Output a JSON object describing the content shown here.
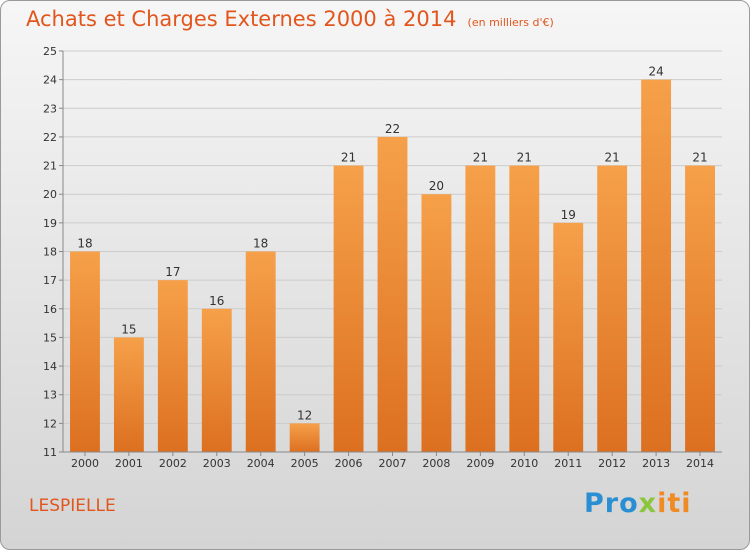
{
  "title": "Achats et Charges Externes 2000 à 2014",
  "subtitle": "(en milliers d'€)",
  "commune": "LESPIELLE",
  "logo": {
    "part1": "Pro",
    "part2": "x",
    "part3": "iti"
  },
  "colors": {
    "bar_top": "#f6a04a",
    "bar_bottom": "#dc7020",
    "title": "#e2561d",
    "grid": "#cccccc"
  },
  "chart_data": {
    "type": "bar",
    "categories": [
      "2000",
      "2001",
      "2002",
      "2003",
      "2004",
      "2005",
      "2006",
      "2007",
      "2008",
      "2009",
      "2010",
      "2011",
      "2012",
      "2013",
      "2014"
    ],
    "values": [
      18,
      15,
      17,
      16,
      18,
      12,
      21,
      22,
      20,
      21,
      21,
      19,
      21,
      24,
      21
    ],
    "ylim": [
      11,
      25
    ],
    "yticks": [
      11,
      12,
      13,
      14,
      15,
      16,
      17,
      18,
      19,
      20,
      21,
      22,
      23,
      24,
      25
    ],
    "xlabel": "",
    "ylabel": "",
    "grid": true,
    "data_labels": true
  }
}
